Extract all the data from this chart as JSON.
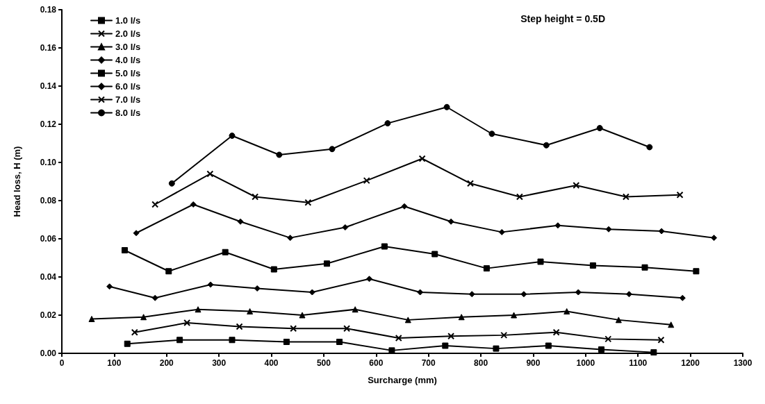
{
  "chart_data": {
    "type": "line",
    "xlabel": "Surcharge (mm)",
    "ylabel": "Head loss, H (m)",
    "annotations": [
      "Step height = 0.5D"
    ],
    "xlim": [
      0,
      1300
    ],
    "xticks": [
      0,
      100,
      200,
      300,
      400,
      500,
      600,
      700,
      800,
      900,
      1000,
      1100,
      1200,
      1300
    ],
    "ylim": [
      0,
      0.18
    ],
    "yticks": [
      {
        "value": 0,
        "label": "0.00"
      },
      {
        "value": 0.02,
        "label": "0.02"
      },
      {
        "value": 0.04,
        "label": "0.04"
      },
      {
        "value": 0.06,
        "label": "0.06"
      },
      {
        "value": 0.08,
        "label": "0.08"
      },
      {
        "value": 0.1,
        "label": "0.10"
      },
      {
        "value": 0.12,
        "label": "0.12"
      },
      {
        "value": 0.14,
        "label": "0.14"
      },
      {
        "value": 0.16,
        "label": "0.16"
      },
      {
        "value": 0.18,
        "label": "0.18"
      }
    ],
    "grid": false,
    "legend": "top left",
    "line_style": "solid",
    "series": [
      {
        "name": "1.0 l/s",
        "color": "#000000",
        "marker": "square",
        "x": [
          125,
          225,
          325,
          429,
          530,
          630,
          732,
          829,
          929,
          1030,
          1130
        ],
        "values": [
          0.005,
          0.007,
          0.007,
          0.006,
          0.006,
          0.0015,
          0.004,
          0.0025,
          0.004,
          0.002,
          0.0005
        ]
      },
      {
        "name": "2.0 l/s",
        "color": "#000000",
        "marker": "cross",
        "x": [
          139,
          239,
          339,
          442,
          544,
          643,
          743,
          844,
          944,
          1043,
          1144
        ],
        "values": [
          0.011,
          0.016,
          0.014,
          0.013,
          0.013,
          0.008,
          0.009,
          0.0095,
          0.011,
          0.0075,
          0.007
        ]
      },
      {
        "name": "3.0 l/s",
        "color": "#000000",
        "marker": "triangle",
        "x": [
          57,
          156,
          260,
          359,
          459,
          560,
          661,
          763,
          863,
          964,
          1063,
          1163
        ],
        "values": [
          0.018,
          0.019,
          0.023,
          0.022,
          0.02,
          0.023,
          0.0175,
          0.019,
          0.02,
          0.022,
          0.0175,
          0.015
        ]
      },
      {
        "name": "4.0 l/s",
        "color": "#000000",
        "marker": "diamond",
        "x": [
          91,
          178,
          284,
          373,
          478,
          587,
          684,
          783,
          882,
          986,
          1083,
          1185
        ],
        "values": [
          0.035,
          0.029,
          0.036,
          0.034,
          0.032,
          0.039,
          0.032,
          0.031,
          0.031,
          0.032,
          0.031,
          0.029
        ]
      },
      {
        "name": "5.0 l/s",
        "color": "#000000",
        "marker": "square",
        "x": [
          120,
          204,
          312,
          405,
          506,
          616,
          712,
          811,
          914,
          1014,
          1113,
          1211
        ],
        "values": [
          0.054,
          0.043,
          0.053,
          0.044,
          0.047,
          0.056,
          0.052,
          0.0445,
          0.048,
          0.046,
          0.045,
          0.043
        ]
      },
      {
        "name": "6.0 l/s",
        "color": "#000000",
        "marker": "diamond",
        "x": [
          142,
          251,
          341,
          436,
          541,
          654,
          743,
          840,
          947,
          1044,
          1145,
          1245
        ],
        "values": [
          0.063,
          0.078,
          0.069,
          0.0605,
          0.066,
          0.077,
          0.069,
          0.0635,
          0.067,
          0.065,
          0.064,
          0.0605
        ]
      },
      {
        "name": "7.0 l/s",
        "color": "#000000",
        "marker": "cross",
        "x": [
          178,
          283,
          369,
          470,
          582,
          688,
          780,
          874,
          982,
          1077,
          1180
        ],
        "values": [
          0.078,
          0.094,
          0.082,
          0.079,
          0.0905,
          0.102,
          0.089,
          0.082,
          0.088,
          0.082,
          0.083
        ]
      },
      {
        "name": "8.0 l/s",
        "color": "#000000",
        "marker": "circle",
        "x": [
          210,
          325,
          415,
          516,
          622,
          735,
          821,
          925,
          1027,
          1122
        ],
        "values": [
          0.089,
          0.114,
          0.104,
          0.107,
          0.1205,
          0.129,
          0.115,
          0.109,
          0.118,
          0.108
        ]
      }
    ]
  }
}
